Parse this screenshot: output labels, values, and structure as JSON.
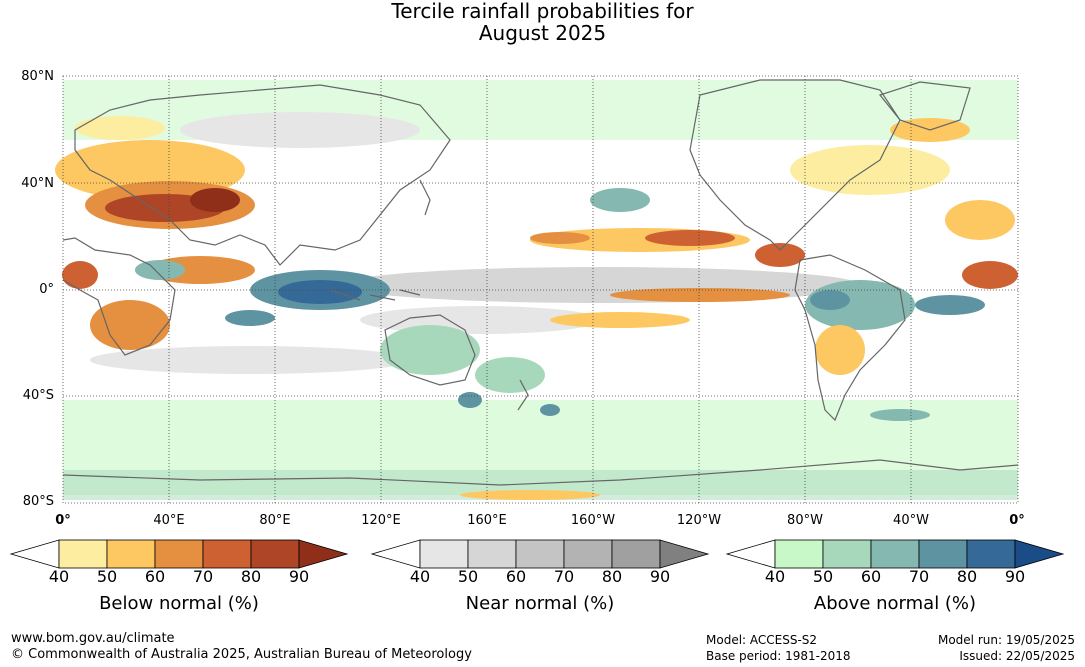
{
  "title_line1": "Tercile rainfall probabilities for",
  "title_line2": "August 2025",
  "lat_labels": [
    "80°N",
    "40°N",
    "0°",
    "40°S",
    "80°S"
  ],
  "lon_labels": [
    "0°",
    "40°E",
    "80°E",
    "120°E",
    "160°E",
    "160°W",
    "120°W",
    "80°W",
    "40°W",
    "0°"
  ],
  "colorbars": [
    {
      "title": "Below normal (%)",
      "ticks": [
        "40",
        "50",
        "60",
        "70",
        "80",
        "90"
      ],
      "colors": [
        "#ffffff",
        "#fdeda0",
        "#fdc762",
        "#e49040",
        "#cd6132",
        "#ad4526",
        "#8f2f1a"
      ]
    },
    {
      "title": "Near normal (%)",
      "ticks": [
        "40",
        "50",
        "60",
        "70",
        "80",
        "90"
      ],
      "colors": [
        "#ffffff",
        "#e6e6e6",
        "#d6d6d6",
        "#c4c4c4",
        "#b3b3b3",
        "#a0a0a0",
        "#808080"
      ]
    },
    {
      "title": "Above normal (%)",
      "ticks": [
        "40",
        "50",
        "60",
        "70",
        "80",
        "90"
      ],
      "colors": [
        "#ffffff",
        "#c8f8c8",
        "#a8d8bc",
        "#84b8b0",
        "#5e94a2",
        "#356a98",
        "#1a4c88"
      ]
    }
  ],
  "footer": {
    "website": "www.bom.gov.au/climate",
    "copyright": "© Commonwealth of Australia 2025, Australian Bureau of Meteorology",
    "model": "Model: ACCESS-S2",
    "base_period": "Base period: 1981-2018",
    "model_run": "Model run: 19/05/2025",
    "issued": "Issued: 22/05/2025"
  },
  "map_legend_colors": {
    "below_50": "#fdeda0",
    "below_60": "#fdc762",
    "below_70": "#e49040",
    "below_80": "#cd6132",
    "below_90": "#ad4526",
    "near_50": "#e6e6e6",
    "near_60": "#d6d6d6",
    "above_50": "#c8f8c8",
    "above_60": "#a8d8bc",
    "above_70": "#84b8b0",
    "above_80": "#5e94a2",
    "above_90": "#356a98"
  }
}
